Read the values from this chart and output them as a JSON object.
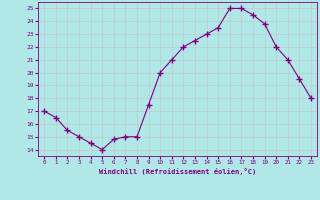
{
  "x": [
    0,
    1,
    2,
    3,
    4,
    5,
    6,
    7,
    8,
    9,
    10,
    11,
    12,
    13,
    14,
    15,
    16,
    17,
    18,
    19,
    20,
    21,
    22,
    23
  ],
  "y": [
    17,
    16.5,
    15.5,
    15,
    14.5,
    14,
    14.8,
    15,
    15,
    17.5,
    20,
    21,
    22,
    22.5,
    23,
    23.5,
    25,
    25,
    24.5,
    23.8,
    22,
    21,
    19.5,
    18
  ],
  "line_color": "#800080",
  "marker_color": "#800080",
  "bg_color": "#b0e8e8",
  "grid_color": "#c8c8c8",
  "xlabel": "Windchill (Refroidissement éolien,°C)",
  "xlabel_color": "#800080",
  "tick_color": "#800080",
  "ylim": [
    13.5,
    25.5
  ],
  "yticks": [
    14,
    15,
    16,
    17,
    18,
    19,
    20,
    21,
    22,
    23,
    24,
    25
  ],
  "xlim": [
    -0.5,
    23.5
  ],
  "xtick_labels": [
    "0",
    "1",
    "2",
    "3",
    "4",
    "5",
    "6",
    "7",
    "8",
    "9",
    "10",
    "11",
    "12",
    "13",
    "14",
    "15",
    "16",
    "17",
    "18",
    "19",
    "20",
    "21",
    "22",
    "23"
  ]
}
